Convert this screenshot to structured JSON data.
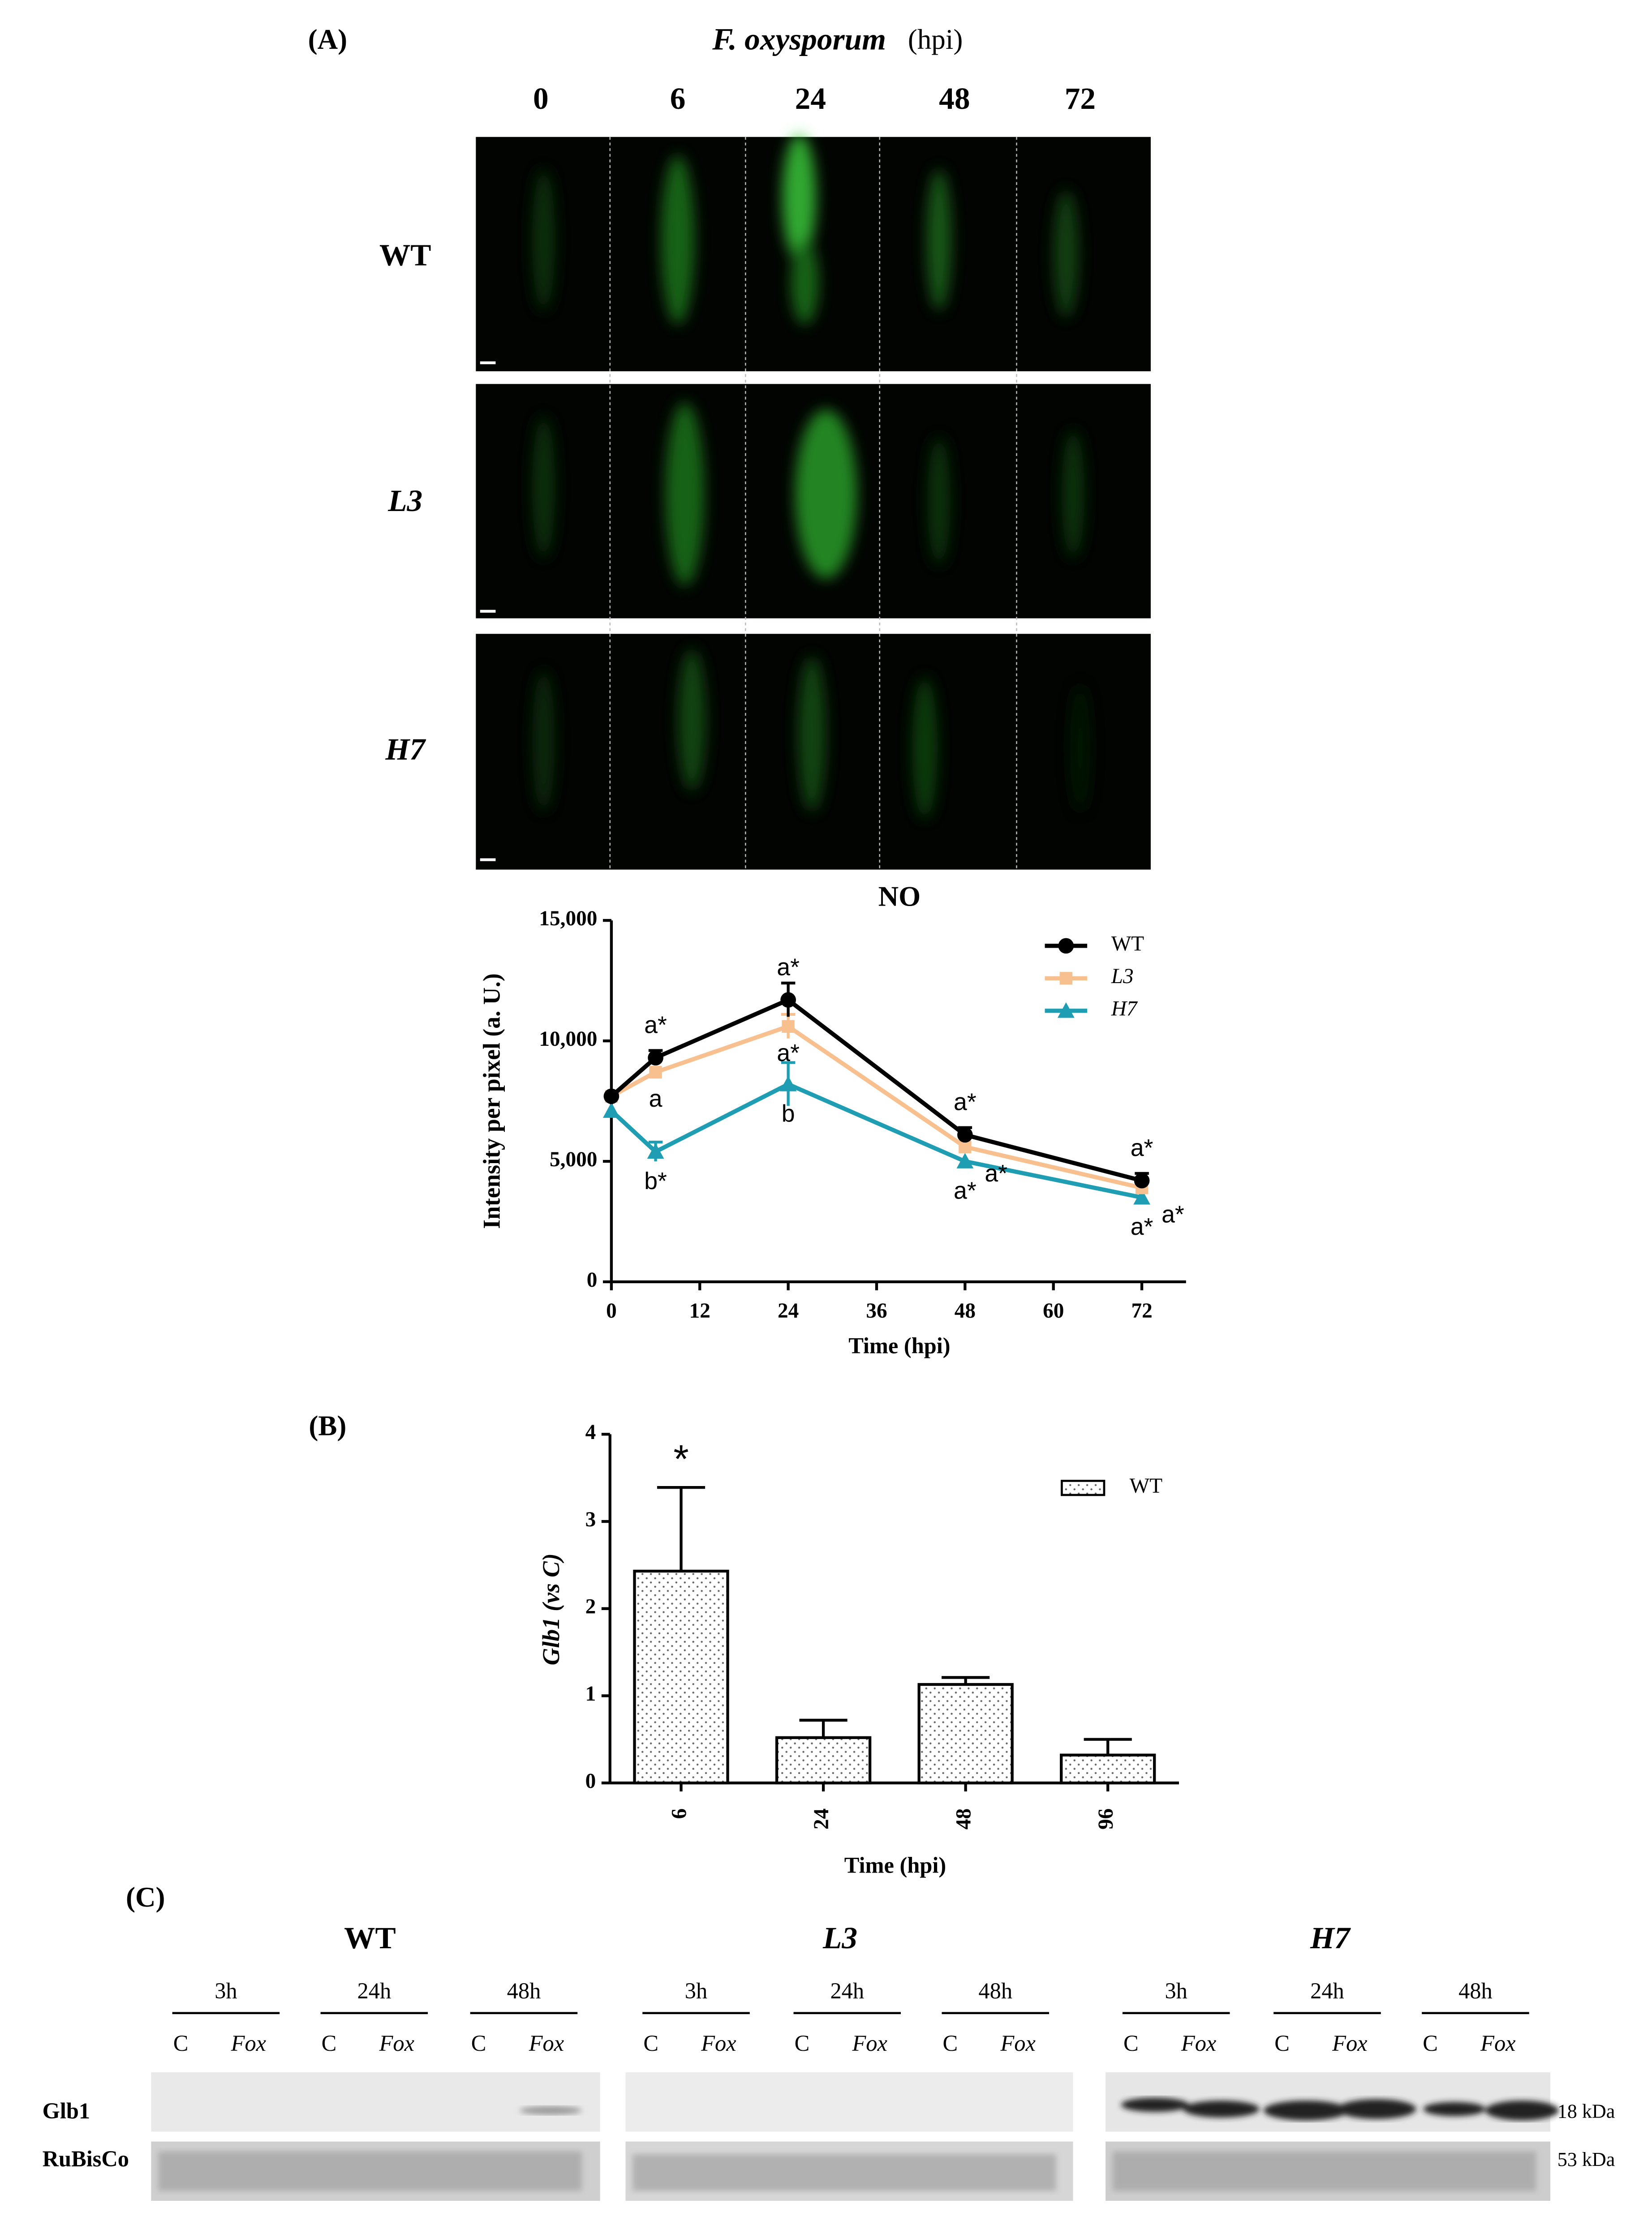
{
  "panel_a": {
    "label": "(A)",
    "organism": "F. oxysporum",
    "unit": "(hpi)",
    "times": [
      "0",
      "6",
      "24",
      "48",
      "72"
    ],
    "rows": [
      "WT",
      "L3",
      "H7"
    ]
  },
  "chart_data": [
    {
      "type": "line",
      "title": "NO",
      "xlabel": "Time (hpi)",
      "ylabel": "Intensity per pixel (a. U.)",
      "x": [
        0,
        6,
        24,
        48,
        72
      ],
      "xlim": [
        0,
        78
      ],
      "xticks": [
        0,
        12,
        24,
        36,
        48,
        60,
        72
      ],
      "ylim": [
        0,
        15000
      ],
      "yticks": [
        0,
        {
          "value": 5000,
          "label": "5,000"
        },
        {
          "value": 10000,
          "label": "10,000"
        },
        {
          "value": 15000,
          "label": "15,000"
        }
      ],
      "series": [
        {
          "name": "WT",
          "color": "#000000",
          "marker": "circle",
          "values": [
            7700,
            9300,
            11700,
            6100,
            4200
          ],
          "errors": [
            null,
            300,
            700,
            300,
            300
          ],
          "point_labels": [
            null,
            "a*",
            "a*",
            "a*",
            "a*"
          ]
        },
        {
          "name": "L3",
          "color": "#f7c08e",
          "marker": "square",
          "values": [
            7700,
            8700,
            10600,
            5600,
            3900
          ],
          "errors": [
            null,
            null,
            500,
            null,
            null
          ],
          "point_labels": [
            null,
            "a",
            "a*",
            "a*",
            "a*"
          ]
        },
        {
          "name": "H7",
          "color": "#1f9db3",
          "marker": "triangle",
          "values": [
            7100,
            5400,
            8200,
            5000,
            3500
          ],
          "errors": [
            null,
            400,
            900,
            null,
            null
          ],
          "point_labels": [
            null,
            "b*",
            "b",
            "a*",
            "a*"
          ]
        }
      ]
    },
    {
      "type": "bar",
      "ylabel": "Glb1 (vs C)",
      "xlabel": "Time (hpi)",
      "label": "(B)",
      "categories": [
        "6",
        "24",
        "48",
        "96"
      ],
      "ylim": [
        0,
        4
      ],
      "yticks": [
        0,
        1,
        2,
        3,
        4
      ],
      "series": [
        {
          "name": "WT",
          "values": [
            2.43,
            0.52,
            1.13,
            0.32
          ],
          "errors": [
            0.96,
            0.2,
            0.08,
            0.18
          ],
          "significance": [
            "*",
            null,
            null,
            null
          ]
        }
      ]
    }
  ],
  "panel_c": {
    "label": "(C)",
    "groups": [
      {
        "name": "WT",
        "times": [
          "3h",
          "24h",
          "48h"
        ]
      },
      {
        "name": "L3",
        "times": [
          "3h",
          "24h",
          "48h"
        ]
      },
      {
        "name": "H7",
        "times": [
          "3h",
          "24h",
          "48h"
        ]
      }
    ],
    "conditions": [
      "C",
      "Fox"
    ],
    "rows": [
      "Glb1",
      "RuBisCo"
    ],
    "sizes": [
      "18 kDa",
      "53 kDa"
    ]
  }
}
